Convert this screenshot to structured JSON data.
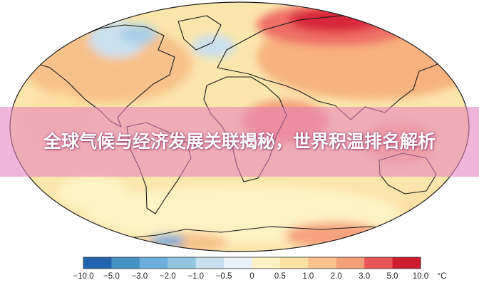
{
  "title": "全球气候与经济发展关联揭秘，世界积温排名解析",
  "colorbar": {
    "ticks": [
      "−10.0",
      "−5.0",
      "−3.0",
      "−2.0",
      "−1.0",
      "−0.5",
      "0",
      "0.5",
      "1.0",
      "2.0",
      "3.0",
      "5.0",
      "10.0"
    ],
    "unit": "°C",
    "colors": [
      "#2166ac",
      "#4393c3",
      "#6aaedc",
      "#92c5de",
      "#c6dfef",
      "#e8f1f7",
      "#fdf2c4",
      "#fde0a4",
      "#fbc290",
      "#f4a07a",
      "#e8565a",
      "#cc1a2e"
    ]
  },
  "palette": {
    "ocean": "#fbe6ac",
    "land_warm": "#f7c28a",
    "hot": "#e23040",
    "cool": "#c9e0f0",
    "coast": "#1a1a1a"
  }
}
